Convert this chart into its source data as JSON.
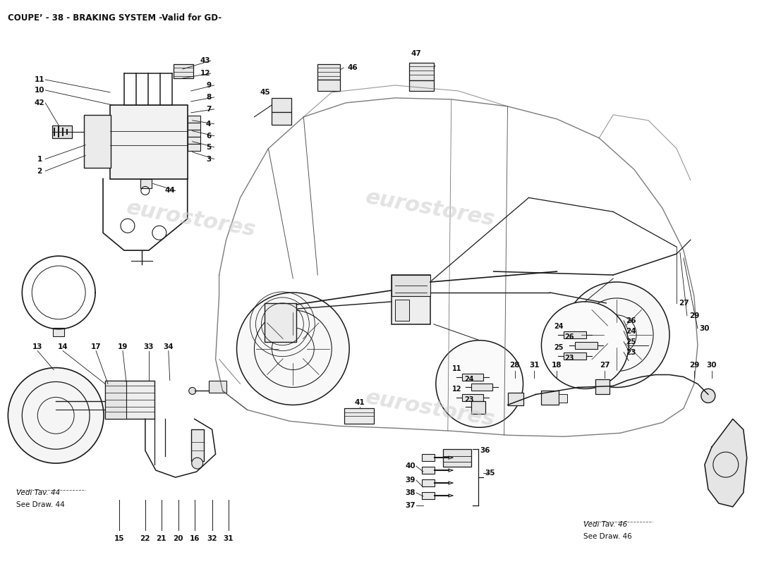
{
  "title": "COUPE’ - 38 - BRAKING SYSTEM -Valid for GD-",
  "title_fontsize": 8.5,
  "title_fontweight": "bold",
  "bg_color": "#ffffff",
  "line_color": "#1a1a1a",
  "text_color": "#111111",
  "watermark_text": "eurostores",
  "watermark_color": "#cccccc",
  "figsize": [
    11.0,
    8.0
  ],
  "dpi": 100,
  "note_left": [
    "Vedi Tav. 44",
    "See Draw. 44"
  ],
  "note_right": [
    "Vedi Tav. 46",
    "See Draw. 46"
  ]
}
